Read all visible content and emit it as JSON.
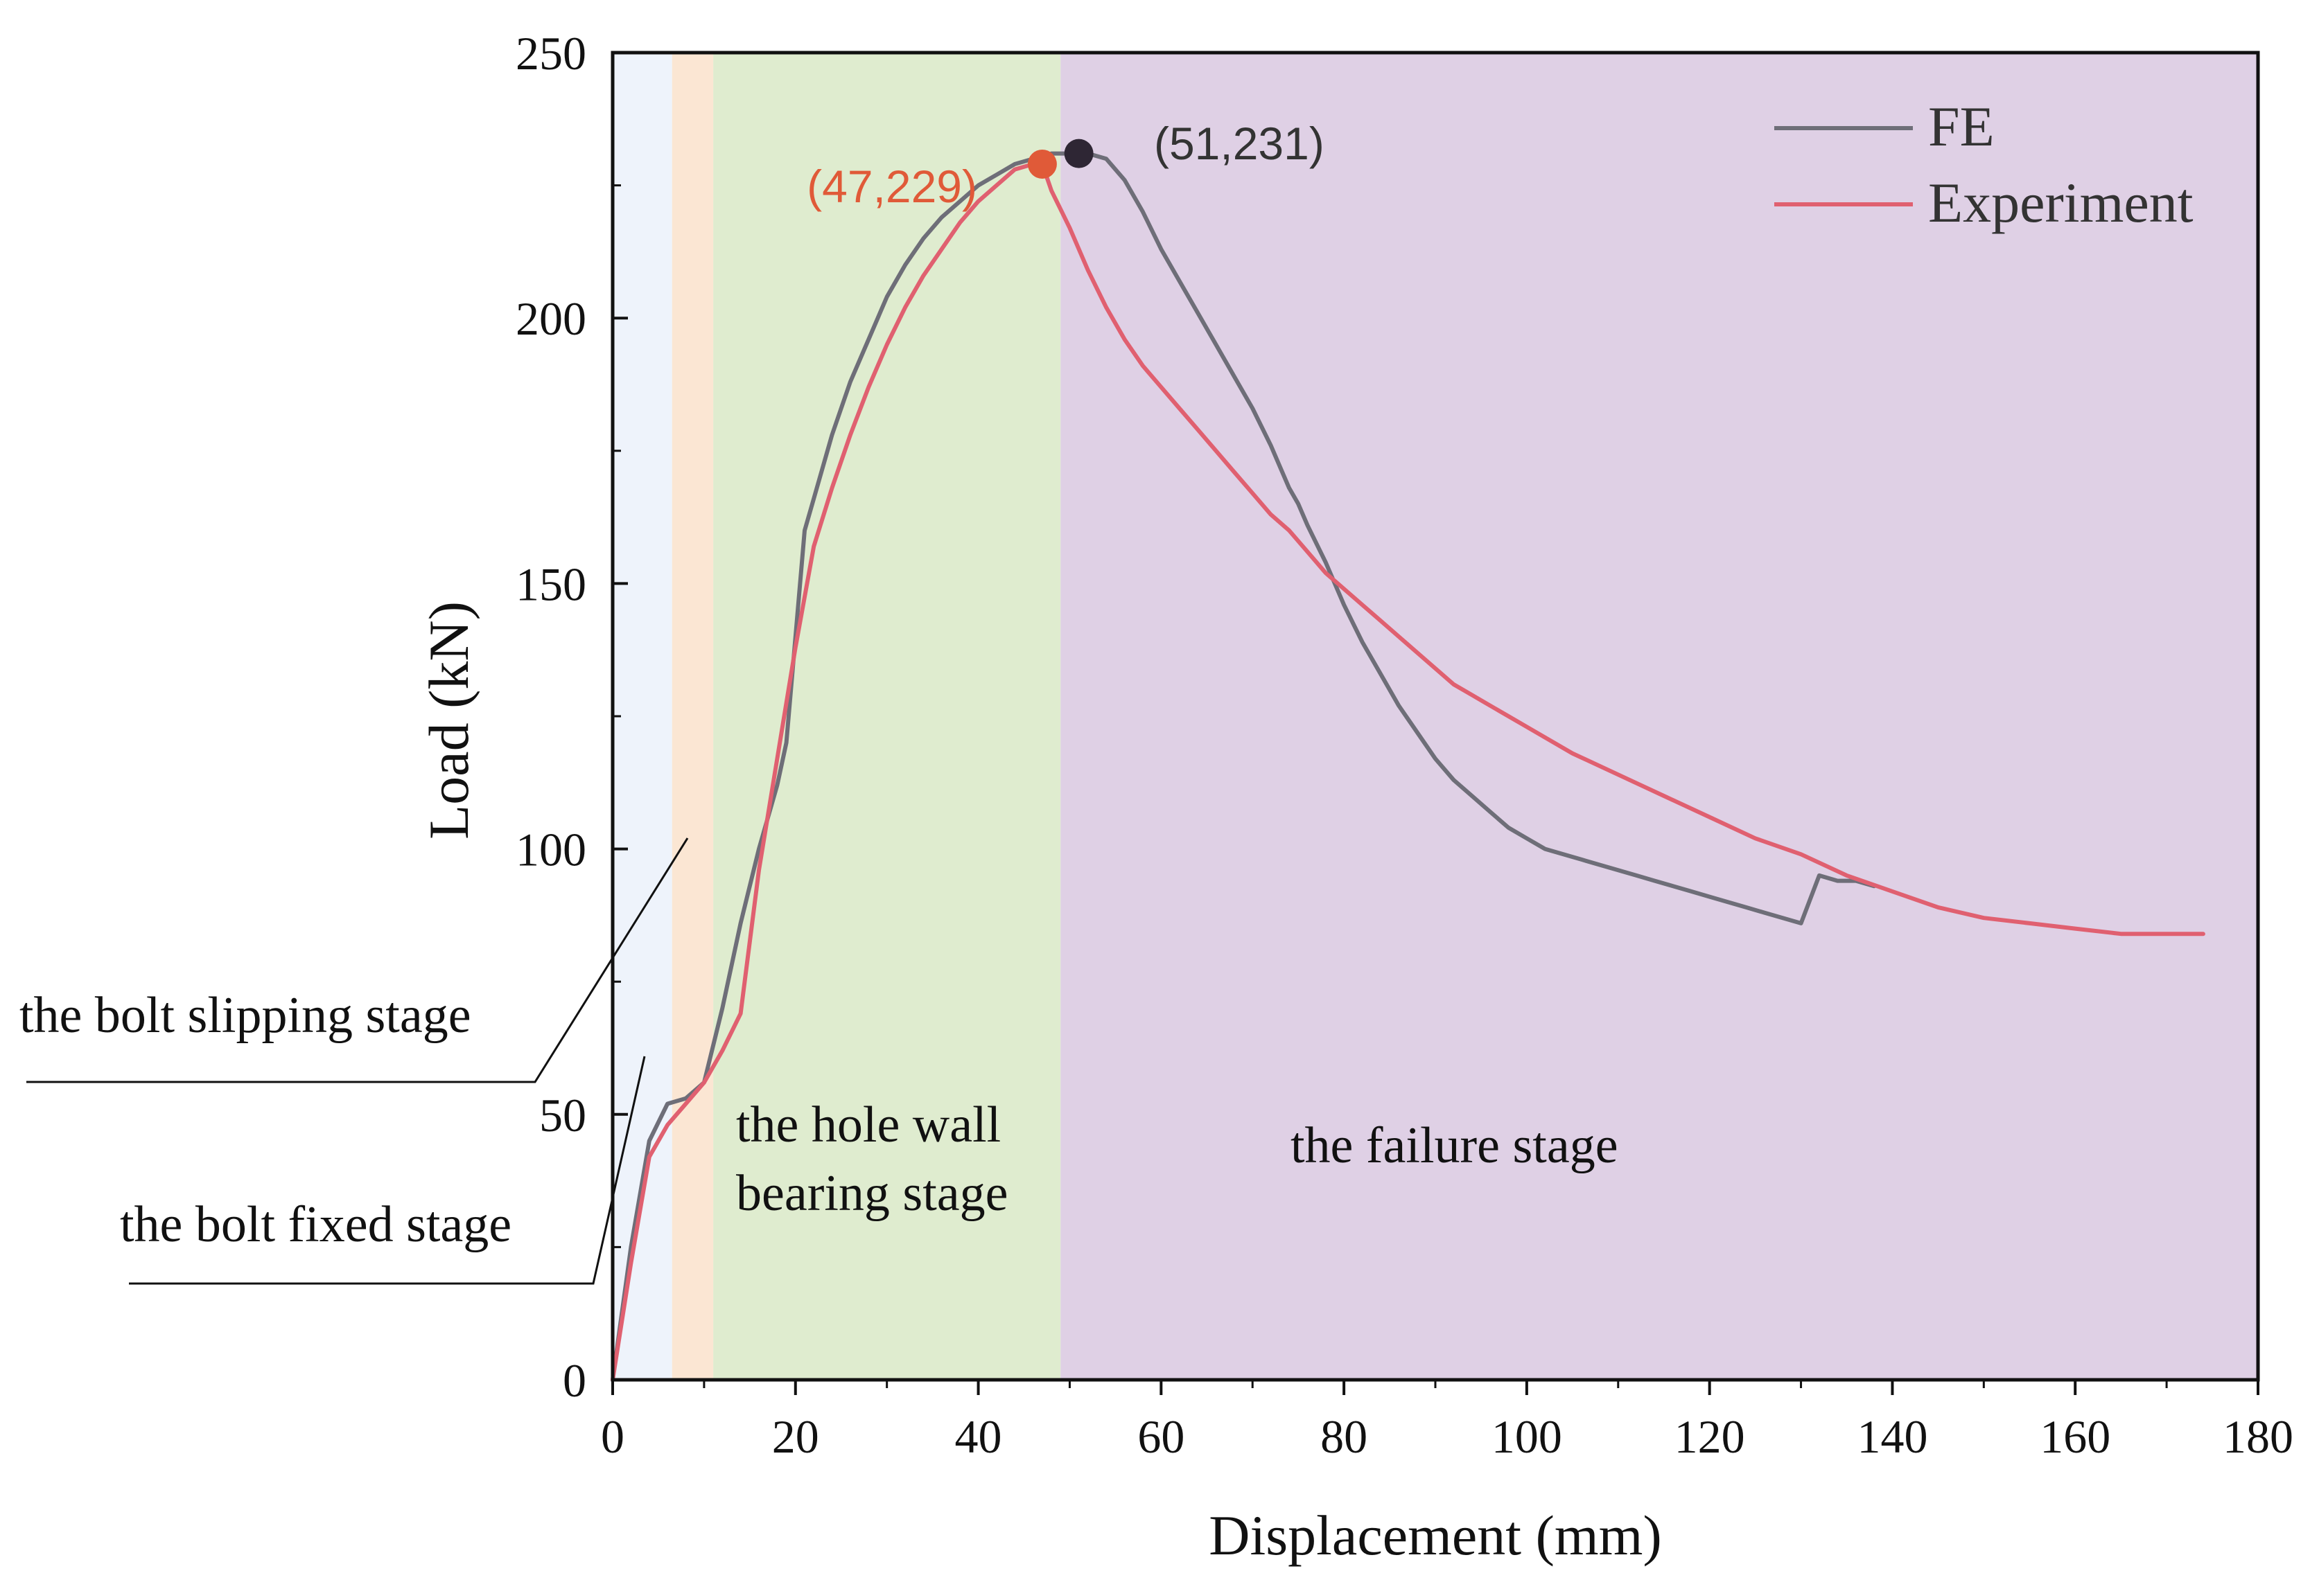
{
  "chart_data": {
    "type": "line",
    "title": "",
    "xlabel": "Displacement (mm)",
    "ylabel": "Load (kN)",
    "xlim": [
      0,
      180
    ],
    "ylim": [
      0,
      250
    ],
    "xticks": [
      0,
      20,
      40,
      60,
      80,
      100,
      120,
      140,
      160,
      180
    ],
    "yticks": [
      0,
      50,
      100,
      150,
      200,
      250
    ],
    "grid": false,
    "legend_position": "top-right",
    "series": [
      {
        "name": "FE",
        "color": "#6e6e78",
        "x": [
          0,
          2,
          4,
          6,
          8,
          10,
          12,
          14,
          16,
          18,
          19,
          20,
          21,
          22,
          24,
          26,
          28,
          30,
          32,
          34,
          36,
          38,
          40,
          42,
          44,
          46,
          48,
          50,
          52,
          54,
          56,
          58,
          60,
          62,
          64,
          66,
          68,
          70,
          72,
          73,
          74,
          75,
          76,
          78,
          80,
          82,
          84,
          86,
          88,
          90,
          92,
          94,
          96,
          98,
          100,
          102,
          104,
          106,
          108,
          110,
          112,
          114,
          116,
          118,
          120,
          122,
          124,
          126,
          128,
          130,
          132,
          134,
          136,
          138
        ],
        "y": [
          0,
          25,
          45,
          52,
          53,
          56,
          70,
          86,
          100,
          112,
          120,
          140,
          160,
          166,
          178,
          188,
          196,
          204,
          210,
          215,
          219,
          222,
          225,
          227,
          229,
          230,
          231,
          231,
          231,
          230,
          226,
          220,
          213,
          207,
          201,
          195,
          189,
          183,
          176,
          172,
          168,
          165,
          161,
          154,
          146,
          139,
          133,
          127,
          122,
          117,
          113,
          110,
          107,
          104,
          102,
          100,
          99,
          98,
          97,
          96,
          95,
          94,
          93,
          92,
          91,
          90,
          89,
          88,
          87,
          86,
          95,
          94,
          94,
          93
        ]
      },
      {
        "name": "Experiment",
        "color": "#e06070",
        "x": [
          0,
          2,
          4,
          6,
          8,
          10,
          12,
          14,
          16,
          18,
          20,
          22,
          24,
          26,
          28,
          30,
          32,
          34,
          36,
          38,
          40,
          42,
          44,
          46,
          47,
          48,
          50,
          52,
          54,
          56,
          58,
          60,
          62,
          64,
          66,
          68,
          70,
          72,
          74,
          76,
          78,
          80,
          82,
          84,
          86,
          88,
          90,
          92,
          94,
          96,
          98,
          100,
          105,
          110,
          115,
          120,
          125,
          130,
          135,
          140,
          145,
          150,
          155,
          160,
          165,
          170,
          174
        ],
        "y": [
          0,
          22,
          42,
          48,
          52,
          56,
          62,
          69,
          96,
          117,
          138,
          157,
          168,
          178,
          187,
          195,
          202,
          208,
          213,
          218,
          222,
          225,
          228,
          229,
          229,
          224,
          217,
          209,
          202,
          196,
          191,
          187,
          183,
          179,
          175,
          171,
          167,
          163,
          160,
          156,
          152,
          149,
          146,
          143,
          140,
          137,
          134,
          131,
          129,
          127,
          125,
          123,
          118,
          114,
          110,
          106,
          102,
          99,
          95,
          92,
          89,
          87,
          86,
          85,
          84,
          84,
          84
        ]
      }
    ],
    "stage_bands": [
      {
        "name": "bolt-fixed",
        "from": 0,
        "to": 6.5,
        "color": "#eef3fb"
      },
      {
        "name": "bolt-slipping",
        "from": 6.5,
        "to": 11,
        "color": "#fbe6d3"
      },
      {
        "name": "hole-wall-bearing",
        "from": 11,
        "to": 49,
        "color": "#dfeccf"
      },
      {
        "name": "failure",
        "from": 49,
        "to": 180,
        "color": "#dfd0e5"
      }
    ],
    "points": [
      {
        "name": "experiment-peak",
        "x": 47,
        "y": 229,
        "label": "(47,229)",
        "color": "#e05a38"
      },
      {
        "name": "fe-peak",
        "x": 51,
        "y": 231,
        "label": "(51,231)",
        "color": "#2e2634"
      }
    ],
    "annotations": {
      "bolt_fixed": "the bolt fixed stage",
      "bolt_slipping": "the bolt slipping stage",
      "hole_wall_line1": "the hole wall",
      "hole_wall_line2": "bearing stage",
      "failure": "the failure stage"
    }
  }
}
